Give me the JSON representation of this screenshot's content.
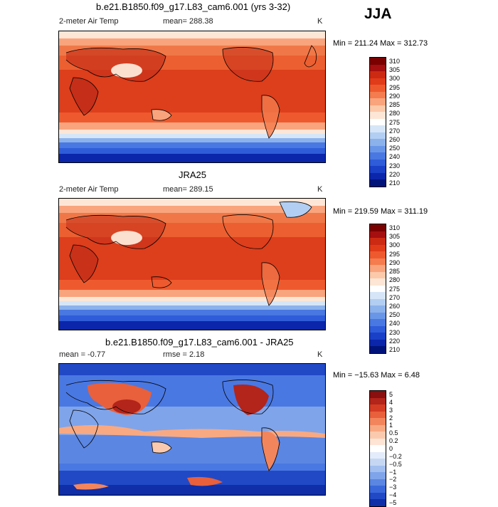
{
  "season": "JJA",
  "panels": [
    {
      "id": "model",
      "title": "b.e21.B1850.f09_g17.L83_cam6.001 (yrs 3-32)",
      "left_label": "2-meter Air Temp",
      "center_label": "mean=  288.38",
      "unit": "K",
      "minmax": "Min = 211.24  Max = 312.73",
      "cbar_colors": [
        "#7a0000",
        "#a50f0f",
        "#cc2a12",
        "#e03c1a",
        "#ee5a2e",
        "#f47c4e",
        "#f9a47c",
        "#fcc9aa",
        "#fde6d6",
        "#ffffff",
        "#d6e6f8",
        "#b2cef2",
        "#8cb2ec",
        "#6a96e8",
        "#4a78e2",
        "#2f5cd9",
        "#1a40c8",
        "#0b26aa",
        "#00137a"
      ],
      "cbar_labels": [
        "310",
        "305",
        "300",
        "295",
        "290",
        "285",
        "280",
        "275",
        "270",
        "260",
        "250",
        "240",
        "230",
        "220",
        "210"
      ]
    },
    {
      "id": "obs",
      "title": "JRA25",
      "left_label": "2-meter Air Temp",
      "center_label": "mean=  289.15",
      "unit": "K",
      "minmax": "Min = 219.59  Max = 311.19",
      "cbar_colors": [
        "#7a0000",
        "#a50f0f",
        "#cc2a12",
        "#e03c1a",
        "#ee5a2e",
        "#f47c4e",
        "#f9a47c",
        "#fcc9aa",
        "#fde6d6",
        "#ffffff",
        "#d6e6f8",
        "#b2cef2",
        "#8cb2ec",
        "#6a96e8",
        "#4a78e2",
        "#2f5cd9",
        "#1a40c8",
        "#0b26aa",
        "#00137a"
      ],
      "cbar_labels": [
        "310",
        "305",
        "300",
        "295",
        "290",
        "285",
        "280",
        "275",
        "270",
        "260",
        "250",
        "240",
        "230",
        "220",
        "210"
      ]
    },
    {
      "id": "diff",
      "title": "b.e21.B1850.f09_g17.L83_cam6.001 - JRA25",
      "left_label": "mean =   -0.77",
      "center_label": "rmse =    2.18",
      "unit": "K",
      "minmax": "Min = −15.63  Max =    6.48",
      "cbar_colors": [
        "#8a0f0f",
        "#b3241a",
        "#d43c24",
        "#e8603c",
        "#f3855c",
        "#f8a982",
        "#fbcaae",
        "#fde4d5",
        "#ffffff",
        "#e3ecfa",
        "#c6d7f4",
        "#a3bff0",
        "#7fa4ea",
        "#5b86e2",
        "#3a68da",
        "#2149c6",
        "#0f2ea8"
      ],
      "cbar_labels": [
        "5",
        "4",
        "3",
        "2",
        "1",
        "0.5",
        "0.2",
        "0",
        "−0.2",
        "−0.5",
        "−1",
        "−2",
        "−3",
        "−4",
        "−5"
      ]
    }
  ]
}
